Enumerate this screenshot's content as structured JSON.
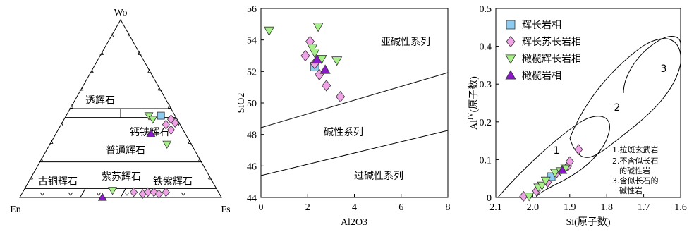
{
  "colors": {
    "huiChangYan": "#8ecbf0",
    "huiChangSu": "#f0a3e6",
    "ganLanHui": "#a8f08a",
    "ganLanYan": "#8a18c8"
  },
  "chart_data": [
    {
      "type": "ternary",
      "vertices": [
        "Wo",
        "En",
        "Fs"
      ],
      "field_labels": [
        "透辉石",
        "钙铁辉石",
        "普通辉石",
        "古铜辉石",
        "紫苏辉石",
        "铁紫辉石"
      ],
      "series": [
        {
          "marker": "square",
          "color": "#8ecbf0",
          "points": [
            [
              0.46,
              0.07,
              0.47
            ]
          ]
        },
        {
          "marker": "diamond",
          "color": "#f0a3e6",
          "points": [
            [
              0.44,
              0.03,
              0.53
            ],
            [
              0.42,
              0.02,
              0.56
            ],
            [
              0.41,
              0.07,
              0.52
            ],
            [
              0.38,
              0.06,
              0.56
            ],
            [
              0.03,
              0.42,
              0.55
            ],
            [
              0.02,
              0.38,
              0.6
            ],
            [
              0.03,
              0.35,
              0.62
            ],
            [
              0.03,
              0.32,
              0.65
            ],
            [
              0.02,
              0.3,
              0.68
            ],
            [
              0.03,
              0.26,
              0.71
            ]
          ]
        },
        {
          "marker": "triangle-down",
          "color": "#a8f08a",
          "points": [
            [
              0.46,
              0.13,
              0.41
            ],
            [
              0.44,
              0.12,
              0.44
            ],
            [
              0.3,
              0.12,
              0.58
            ],
            [
              0.04,
              0.52,
              0.44
            ]
          ]
        },
        {
          "marker": "triangle-up",
          "color": "#8a18c8",
          "points": [
            [
              0.36,
              0.17,
              0.47
            ],
            [
              0.0,
              0.59,
              0.41
            ]
          ]
        }
      ]
    },
    {
      "type": "scatter",
      "xlabel": "Al2O3",
      "ylabel": "SiO2",
      "xlim": [
        0,
        8
      ],
      "ylim": [
        44,
        56
      ],
      "xticks": [
        0,
        2,
        4,
        6,
        8
      ],
      "yticks": [
        44,
        46,
        48,
        50,
        52,
        54,
        56
      ],
      "field_labels": [
        "亚碱性系列",
        "碱性系列",
        "过碱性系列"
      ],
      "series": [
        {
          "marker": "square",
          "color": "#8ecbf0",
          "points": [
            [
              2.3,
              52.3
            ]
          ]
        },
        {
          "marker": "diamond",
          "color": "#f0a3e6",
          "points": [
            [
              2.1,
              53.9
            ],
            [
              1.9,
              53.0
            ],
            [
              2.3,
              52.5
            ],
            [
              2.5,
              51.8
            ],
            [
              2.8,
              51.1
            ],
            [
              3.4,
              50.4
            ]
          ]
        },
        {
          "marker": "triangle-down",
          "color": "#a8f08a",
          "points": [
            [
              0.35,
              54.6
            ],
            [
              2.45,
              54.85
            ],
            [
              2.2,
              53.5
            ],
            [
              2.3,
              53.2
            ],
            [
              2.6,
              52.8
            ],
            [
              3.25,
              52.7
            ]
          ]
        },
        {
          "marker": "triangle-up",
          "color": "#8a18c8",
          "points": [
            [
              2.4,
              52.75
            ],
            [
              2.75,
              52.1
            ]
          ]
        }
      ]
    },
    {
      "type": "scatter",
      "xlabel": "Si(原子数)",
      "ylabel": "Al",
      "ylabel_sup": "IV",
      "ylabel_rest": "(原子数)",
      "xlim": [
        2.1,
        1.6
      ],
      "ylim": [
        0,
        0.5
      ],
      "xticks": [
        "2.1",
        "2.0",
        "1.9",
        "1.8",
        "1.7",
        "1.6"
      ],
      "yticks": [
        "0",
        "0.1",
        "0.2",
        "0.3",
        "0.4",
        "0.5"
      ],
      "field_labels": [
        "1",
        "2",
        "3"
      ],
      "notes": [
        "1.拉斑玄武岩",
        "2.不含似长石",
        "的碱性岩",
        "3.含似长石的",
        "碱性岩"
      ],
      "legend": [
        "辉长岩相",
        "辉长苏长岩相",
        "橄榄辉长岩相",
        "橄榄岩相"
      ],
      "series": [
        {
          "name": "辉长岩相",
          "marker": "square",
          "color": "#8ecbf0",
          "points": [
            [
              1.95,
              0.055
            ]
          ]
        },
        {
          "name": "辉长苏长岩相",
          "marker": "diamond",
          "color": "#f0a3e6",
          "points": [
            [
              2.025,
              0.003
            ],
            [
              1.99,
              0.017
            ],
            [
              1.96,
              0.04
            ],
            [
              1.935,
              0.065
            ],
            [
              1.905,
              0.083
            ],
            [
              1.9,
              0.095
            ],
            [
              1.876,
              0.127
            ]
          ]
        },
        {
          "name": "橄榄辉长岩相",
          "marker": "triangle-down",
          "color": "#a8f08a",
          "points": [
            [
              2.01,
              0.003
            ],
            [
              1.985,
              0.027
            ],
            [
              1.975,
              0.032
            ],
            [
              1.965,
              0.045
            ],
            [
              1.94,
              0.066
            ],
            [
              1.925,
              0.07
            ],
            [
              1.912,
              0.077
            ]
          ]
        },
        {
          "name": "橄榄岩相",
          "marker": "triangle-up",
          "color": "#8a18c8",
          "points": [
            [
              1.92,
              0.072
            ]
          ]
        }
      ]
    }
  ]
}
